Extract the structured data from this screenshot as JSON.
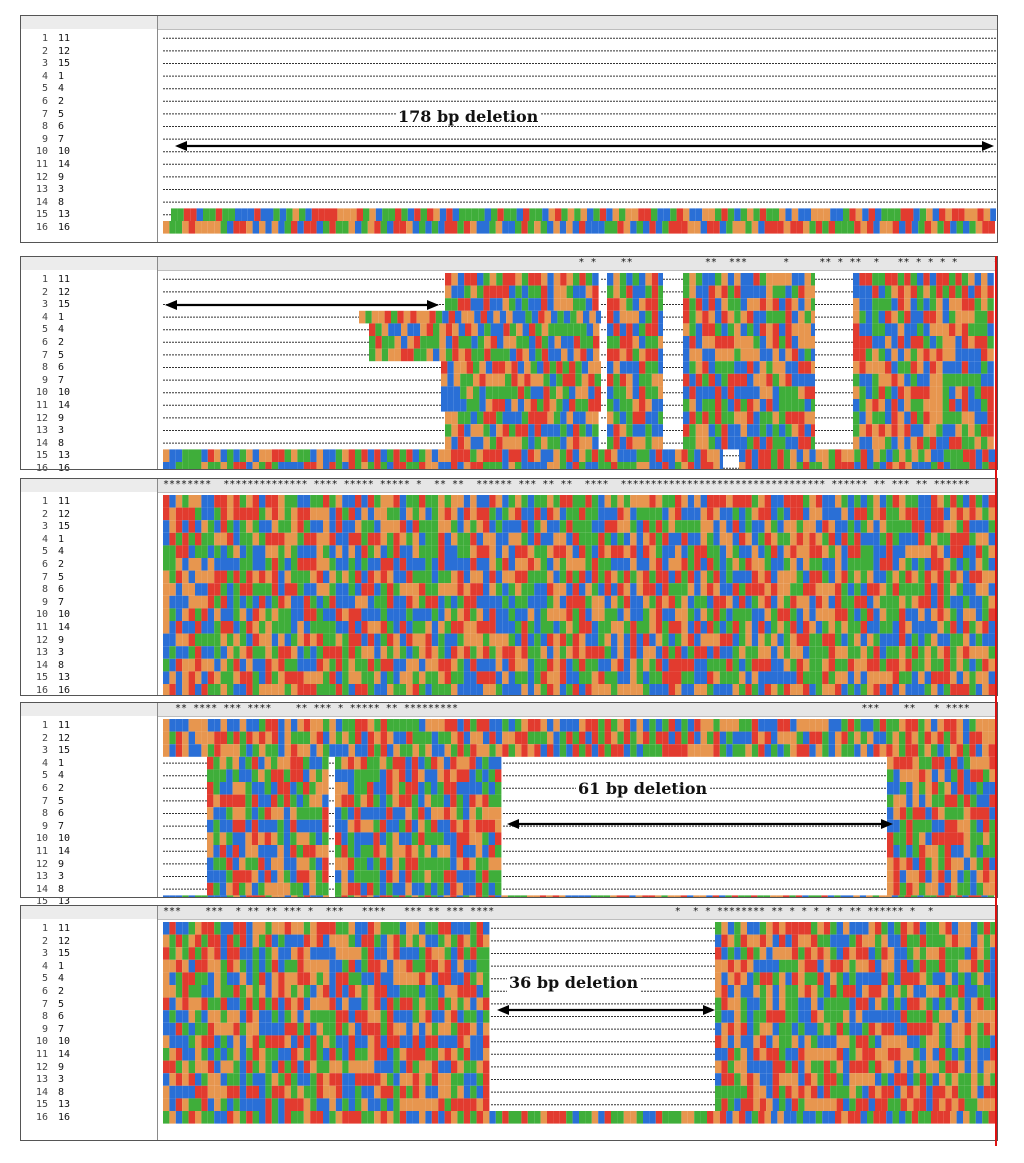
{
  "colors": {
    "A": "#e23b2f",
    "C": "#2a6fd6",
    "G": "#e7964f",
    "T": "#3fae3a",
    "gap": "#333333",
    "arrow": "#000000",
    "red_line": "#d11111"
  },
  "panels": [
    {
      "id": "p1",
      "stars": "",
      "deletion_label": "178  bp deletion",
      "rows": [
        {
          "index": "1",
          "name": "11"
        },
        {
          "index": "2",
          "name": "12"
        },
        {
          "index": "3",
          "name": "15"
        },
        {
          "index": "4",
          "name": "1"
        },
        {
          "index": "5",
          "name": "4"
        },
        {
          "index": "6",
          "name": "2"
        },
        {
          "index": "7",
          "name": "5"
        },
        {
          "index": "8",
          "name": "6"
        },
        {
          "index": "9",
          "name": "7"
        },
        {
          "index": "10",
          "name": "10"
        },
        {
          "index": "11",
          "name": "14"
        },
        {
          "index": "12",
          "name": "9"
        },
        {
          "index": "13",
          "name": "3"
        },
        {
          "index": "14",
          "name": "8"
        },
        {
          "index": "15",
          "name": "13"
        },
        {
          "index": "16",
          "name": "16"
        }
      ]
    },
    {
      "id": "p2",
      "stars": "                                                                     * *    **            **  ***      *     ** * **  *   ** * * * *      *   ****    *     ** ***",
      "deletion_label": "",
      "rows": [
        {
          "index": "1",
          "name": "11"
        },
        {
          "index": "2",
          "name": "12"
        },
        {
          "index": "3",
          "name": "15"
        },
        {
          "index": "4",
          "name": "1"
        },
        {
          "index": "5",
          "name": "4"
        },
        {
          "index": "6",
          "name": "2"
        },
        {
          "index": "7",
          "name": "5"
        },
        {
          "index": "8",
          "name": "6"
        },
        {
          "index": "9",
          "name": "7"
        },
        {
          "index": "10",
          "name": "10"
        },
        {
          "index": "11",
          "name": "14"
        },
        {
          "index": "12",
          "name": "9"
        },
        {
          "index": "13",
          "name": "3"
        },
        {
          "index": "14",
          "name": "8"
        },
        {
          "index": "15",
          "name": "13"
        },
        {
          "index": "16",
          "name": "16"
        }
      ]
    },
    {
      "id": "p3",
      "stars": "********  ************** **** ***** ***** *  ** **  ****** *** ** **  ****  ********************************** ****** ** *** ** ******",
      "deletion_label": "",
      "rows": [
        {
          "index": "1",
          "name": "11"
        },
        {
          "index": "2",
          "name": "12"
        },
        {
          "index": "3",
          "name": "15"
        },
        {
          "index": "4",
          "name": "1"
        },
        {
          "index": "5",
          "name": "4"
        },
        {
          "index": "6",
          "name": "2"
        },
        {
          "index": "7",
          "name": "5"
        },
        {
          "index": "8",
          "name": "6"
        },
        {
          "index": "9",
          "name": "7"
        },
        {
          "index": "10",
          "name": "10"
        },
        {
          "index": "11",
          "name": "14"
        },
        {
          "index": "12",
          "name": "9"
        },
        {
          "index": "13",
          "name": "3"
        },
        {
          "index": "14",
          "name": "8"
        },
        {
          "index": "15",
          "name": "13"
        },
        {
          "index": "16",
          "name": "16"
        }
      ]
    },
    {
      "id": "p4",
      "stars": "  ** **** *** ****    ** *** * ***** ** *********                                                                   ***    **   * ****",
      "deletion_label": "61 bp deletion",
      "rows": [
        {
          "index": "1",
          "name": "11"
        },
        {
          "index": "2",
          "name": "12"
        },
        {
          "index": "3",
          "name": "15"
        },
        {
          "index": "4",
          "name": "1"
        },
        {
          "index": "5",
          "name": "4"
        },
        {
          "index": "6",
          "name": "2"
        },
        {
          "index": "7",
          "name": "5"
        },
        {
          "index": "8",
          "name": "6"
        },
        {
          "index": "9",
          "name": "7"
        },
        {
          "index": "10",
          "name": "10"
        },
        {
          "index": "11",
          "name": "14"
        },
        {
          "index": "12",
          "name": "9"
        },
        {
          "index": "13",
          "name": "3"
        },
        {
          "index": "14",
          "name": "8"
        },
        {
          "index": "15",
          "name": "13"
        },
        {
          "index": "16",
          "name": "16"
        }
      ]
    },
    {
      "id": "p5",
      "stars": "***    ***  * ** ** *** *  ***   ****   *** ** *** ****                              *  * * ******** ** * * * * * ** ****** *  *",
      "deletion_label": "36 bp deletion",
      "rows": [
        {
          "index": "1",
          "name": "11"
        },
        {
          "index": "2",
          "name": "12"
        },
        {
          "index": "3",
          "name": "15"
        },
        {
          "index": "4",
          "name": "1"
        },
        {
          "index": "5",
          "name": "4"
        },
        {
          "index": "6",
          "name": "2"
        },
        {
          "index": "7",
          "name": "5"
        },
        {
          "index": "8",
          "name": "6"
        },
        {
          "index": "9",
          "name": "7"
        },
        {
          "index": "10",
          "name": "10"
        },
        {
          "index": "11",
          "name": "14"
        },
        {
          "index": "12",
          "name": "9"
        },
        {
          "index": "13",
          "name": "3"
        },
        {
          "index": "14",
          "name": "8"
        },
        {
          "index": "15",
          "name": "13"
        },
        {
          "index": "16",
          "name": "16"
        }
      ]
    }
  ]
}
